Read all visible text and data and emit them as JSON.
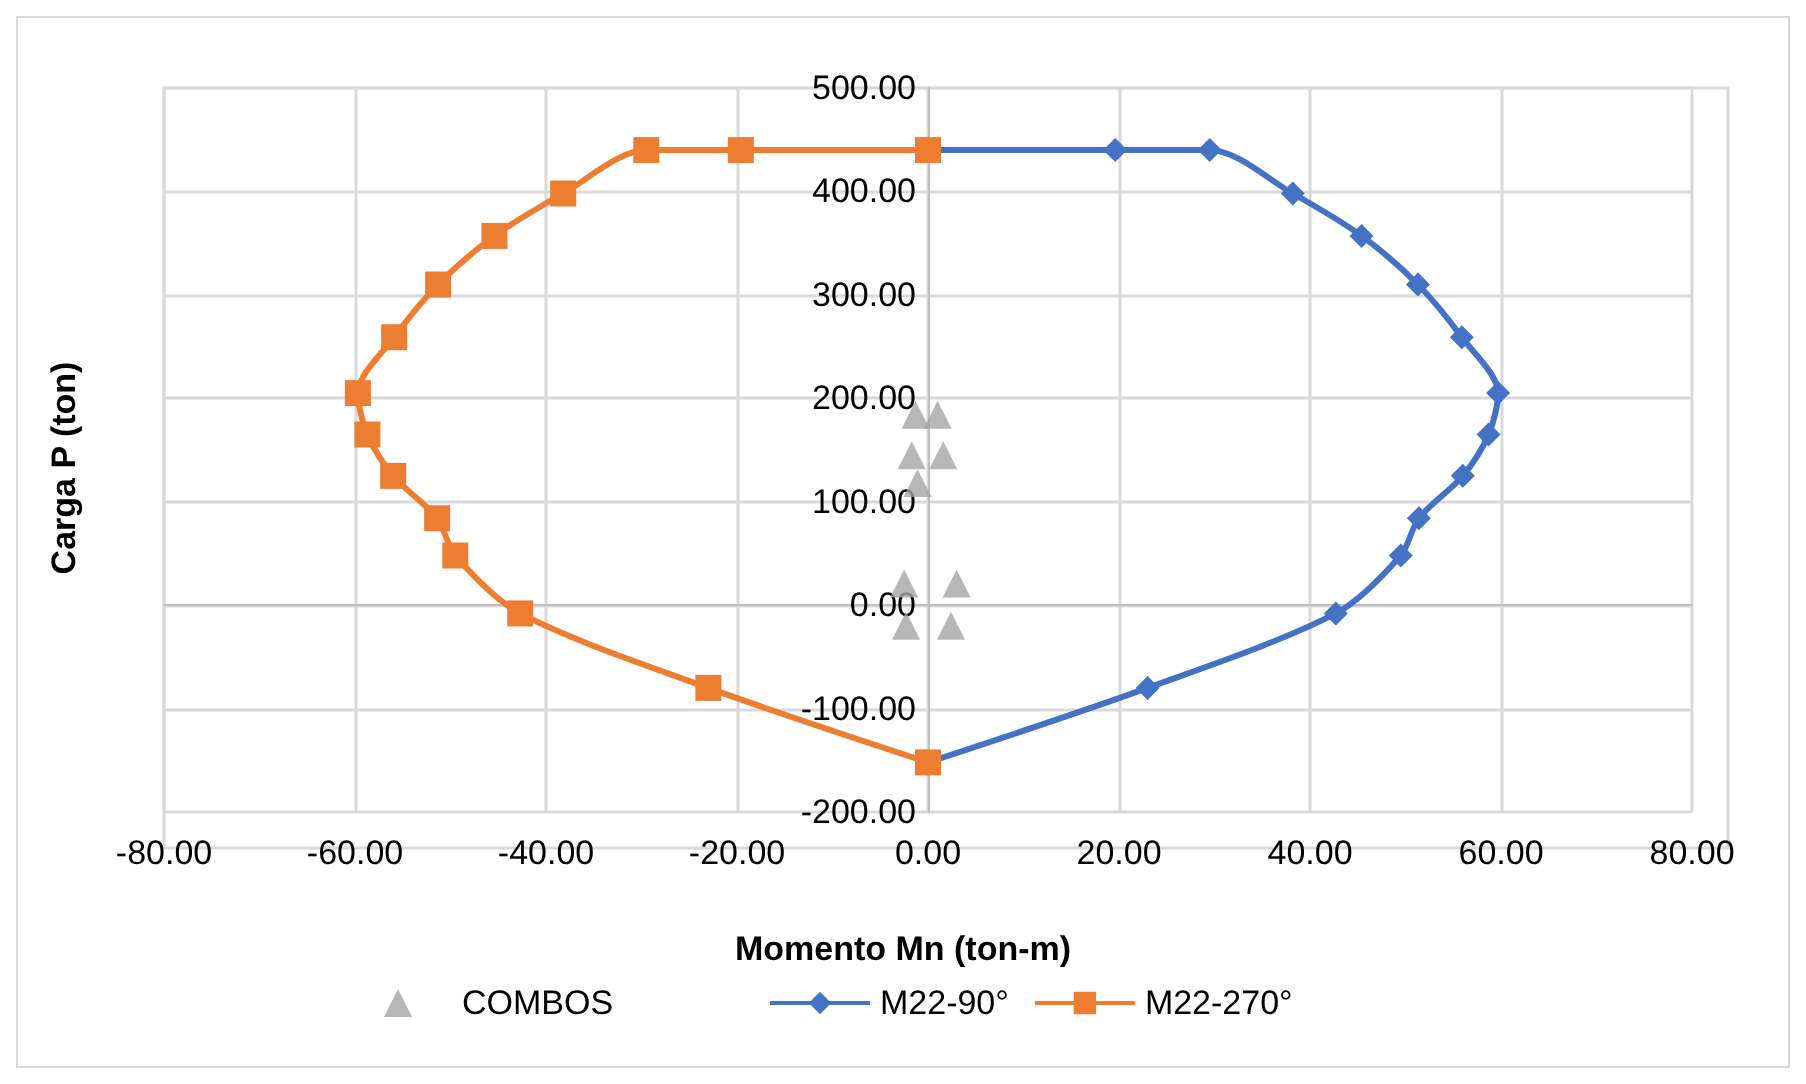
{
  "chart_data": {
    "type": "line",
    "xlabel": "Momento Mn (ton-m)",
    "ylabel": "Carga P (ton)",
    "xlim": [
      -80,
      80
    ],
    "xticks": [
      {
        "value": -80,
        "label": "-80.00"
      },
      {
        "value": -60,
        "label": "-60.00"
      },
      {
        "value": -40,
        "label": "-40.00"
      },
      {
        "value": -20,
        "label": "-20.00"
      },
      {
        "value": 0,
        "label": "0.00"
      },
      {
        "value": 20,
        "label": "20.00"
      },
      {
        "value": 40,
        "label": "40.00"
      },
      {
        "value": 60,
        "label": "60.00"
      },
      {
        "value": 80,
        "label": "80.00"
      }
    ],
    "ylim": [
      -200,
      500
    ],
    "yticks": [
      {
        "value": -200,
        "label": "-200.00"
      },
      {
        "value": -100,
        "label": "-100.00"
      },
      {
        "value": 0,
        "label": "0.00"
      },
      {
        "value": 100,
        "label": "100.00"
      },
      {
        "value": 200,
        "label": "200.00"
      },
      {
        "value": 300,
        "label": "300.00"
      },
      {
        "value": 400,
        "label": "400.00"
      },
      {
        "value": 500,
        "label": "500.00"
      }
    ],
    "grid": true,
    "legend": "bottom",
    "line_style": "solid",
    "series": [
      {
        "name": "COMBOS",
        "type": "scatter",
        "marker": "triangle",
        "color": "#a5a5a5",
        "x": [
          -1.3,
          1.0,
          -1.7,
          1.6,
          -1.1,
          -2.5,
          3.0,
          -2.3,
          2.4
        ],
        "values": [
          184,
          184,
          145,
          145,
          118,
          21,
          21,
          -20,
          -20
        ]
      },
      {
        "name": "M22-90°",
        "type": "line",
        "marker": "diamond",
        "color": "#4472c4",
        "x": [
          0,
          19.6,
          29.5,
          38.2,
          45.4,
          51.3,
          55.9,
          59.7,
          58.7,
          56.0,
          51.4,
          49.5,
          42.7,
          23.0,
          0
        ],
        "values": [
          440,
          440,
          440,
          398,
          357,
          310,
          259,
          205,
          165,
          125,
          84,
          48,
          -8,
          -80,
          -152
        ]
      },
      {
        "name": "M22-270°",
        "type": "line",
        "marker": "square",
        "color": "#ed7d31",
        "x": [
          0,
          -19.6,
          -29.5,
          -38.2,
          -45.4,
          -51.3,
          -55.9,
          -59.7,
          -58.7,
          -56.0,
          -51.4,
          -49.5,
          -42.7,
          -23.0,
          0
        ],
        "values": [
          440,
          440,
          440,
          398,
          357,
          310,
          259,
          205,
          165,
          125,
          84,
          48,
          -8,
          -80,
          -152
        ]
      }
    ]
  }
}
